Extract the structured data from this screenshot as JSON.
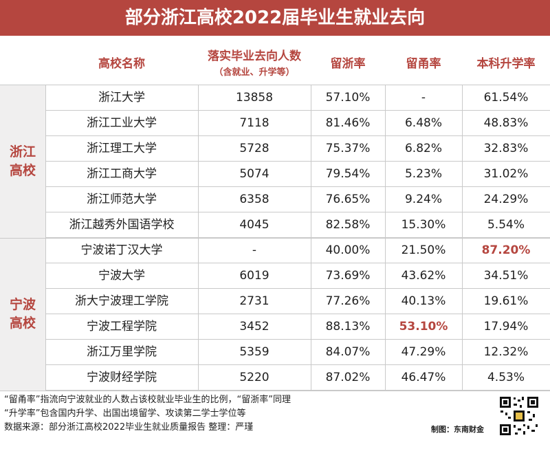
{
  "title": "部分浙江高校2022届毕业生就业去向",
  "headers": {
    "name": "高校名称",
    "count": "落实毕业去向人数",
    "count_sub": "（含就业、升学等）",
    "zhe_rate": "留浙率",
    "yong_rate": "留甬率",
    "upgrade_rate": "本科升学率"
  },
  "groups": [
    {
      "label_line1": "浙江",
      "label_line2": "高校",
      "rows": [
        {
          "name": "浙江大学",
          "count": "13858",
          "zhe": "57.10%",
          "yong": "-",
          "up": "61.54%"
        },
        {
          "name": "浙江工业大学",
          "count": "7118",
          "zhe": "81.46%",
          "yong": "6.48%",
          "up": "48.83%"
        },
        {
          "name": "浙江理工大学",
          "count": "5728",
          "zhe": "75.37%",
          "yong": "6.82%",
          "up": "32.83%"
        },
        {
          "name": "浙江工商大学",
          "count": "5074",
          "zhe": "79.54%",
          "yong": "5.23%",
          "up": "31.02%"
        },
        {
          "name": "浙江师范大学",
          "count": "6358",
          "zhe": "76.65%",
          "yong": "9.24%",
          "up": "24.29%"
        },
        {
          "name": "浙江越秀外国语学校",
          "count": "4045",
          "zhe": "82.58%",
          "yong": "15.30%",
          "up": "5.54%"
        }
      ]
    },
    {
      "label_line1": "宁波",
      "label_line2": "高校",
      "rows": [
        {
          "name": "宁波诺丁汉大学",
          "count": "-",
          "zhe": "40.00%",
          "yong": "21.50%",
          "up": "87.20%",
          "hl_up": true
        },
        {
          "name": "宁波大学",
          "count": "6019",
          "zhe": "73.69%",
          "yong": "43.62%",
          "up": "34.51%"
        },
        {
          "name": "浙大宁波理工学院",
          "count": "2731",
          "zhe": "77.26%",
          "yong": "40.13%",
          "up": "19.61%"
        },
        {
          "name": "宁波工程学院",
          "count": "3452",
          "zhe": "88.13%",
          "yong": "53.10%",
          "up": "17.94%",
          "hl_yong": true
        },
        {
          "name": "浙江万里学院",
          "count": "5359",
          "zhe": "84.07%",
          "yong": "47.29%",
          "up": "12.32%"
        },
        {
          "name": "宁波财经学院",
          "count": "5220",
          "zhe": "87.02%",
          "yong": "46.47%",
          "up": "4.53%"
        }
      ]
    }
  ],
  "notes": {
    "line1": "“留甬率”指流向宁波就业的人数占该校就业毕业生的比例，“留浙率”同理",
    "line2": "“升学率”包含国内升学、出国出境留学、攻读第二学士学位等",
    "line3": "数据来源：部分浙江高校2022毕业生就业质量报告  整理：严瑾"
  },
  "credit": "制图：东南财金",
  "colors": {
    "accent": "#b5463f",
    "group_bg": "#f0efef",
    "line": "#c9c9c9"
  }
}
